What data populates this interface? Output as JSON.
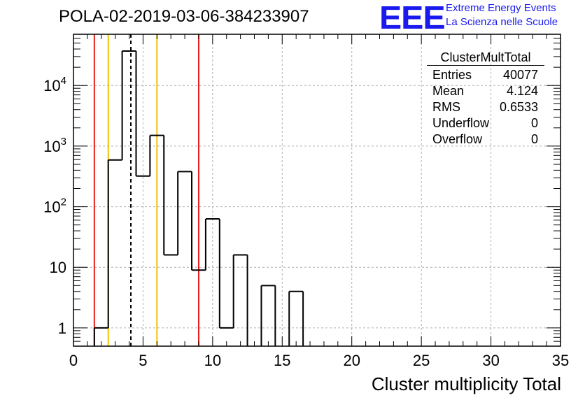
{
  "header": {
    "title": "POLA-02-2019-03-06-384233907",
    "logo_text": "EEE",
    "logo_line1": "Extreme Energy Events",
    "logo_line2": "La Scienza nelle Scuole",
    "logo_color": "#1a1aee"
  },
  "stats_box": {
    "title": "ClusterMultTotal",
    "rows": [
      {
        "label": "Entries",
        "value": "40077"
      },
      {
        "label": "Mean",
        "value": "4.124"
      },
      {
        "label": "RMS",
        "value": "0.6533"
      },
      {
        "label": "Underflow",
        "value": "0"
      },
      {
        "label": "Overflow",
        "value": "0"
      }
    ]
  },
  "chart_data": {
    "type": "histogram",
    "title": "POLA-02-2019-03-06-384233907",
    "xlabel": "Cluster multiplicity Total",
    "ylabel": "",
    "y_scale": "log",
    "xlim": [
      0,
      35
    ],
    "ylim": [
      0.5,
      70000
    ],
    "grid": true,
    "x_ticks": [
      "0",
      "5",
      "10",
      "15",
      "20",
      "25",
      "30",
      "35"
    ],
    "y_ticks": [
      "1",
      "10",
      "10^2",
      "10^3",
      "10^4"
    ],
    "bin_edges": [
      1.5,
      2.5,
      3.5,
      4.5,
      5.5,
      6.5,
      7.5,
      8.5,
      9.5,
      10.5,
      11.5,
      12.5,
      13.5,
      14.5,
      15.5,
      16.5
    ],
    "counts": [
      1,
      590,
      37000,
      320,
      1500,
      16,
      380,
      9,
      63,
      1,
      16,
      0,
      5,
      0,
      4
    ],
    "vertical_lines": [
      {
        "x": 1.5,
        "color": "#e8201c",
        "style": "solid"
      },
      {
        "x": 2.5,
        "color": "#f2c300",
        "style": "solid"
      },
      {
        "x": 4.124,
        "color": "#000000",
        "style": "dashed"
      },
      {
        "x": 6.0,
        "color": "#f2c300",
        "style": "solid"
      },
      {
        "x": 9.0,
        "color": "#e8201c",
        "style": "solid"
      }
    ]
  }
}
